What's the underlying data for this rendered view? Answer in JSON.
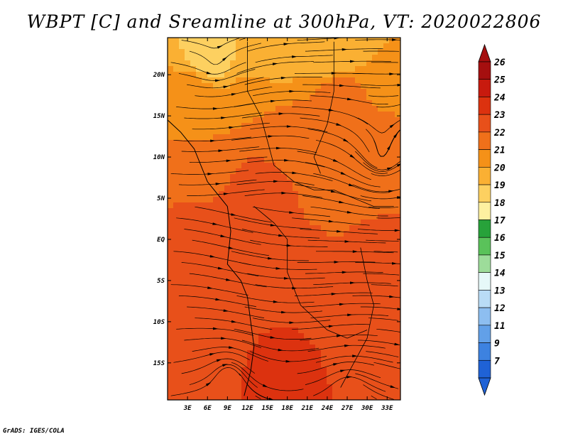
{
  "chart_data": {
    "type": "heatmap",
    "title": "WBPT [C] and Sreamline at 300hPa, VT: 2020022806",
    "footer": "GrADS: IGES/COLA",
    "x_ticks": [
      {
        "label": "3E",
        "value": 3
      },
      {
        "label": "6E",
        "value": 6
      },
      {
        "label": "9E",
        "value": 9
      },
      {
        "label": "12E",
        "value": 12
      },
      {
        "label": "15E",
        "value": 15
      },
      {
        "label": "18E",
        "value": 18
      },
      {
        "label": "21E",
        "value": 21
      },
      {
        "label": "24E",
        "value": 24
      },
      {
        "label": "27E",
        "value": 27
      },
      {
        "label": "30E",
        "value": 30
      },
      {
        "label": "33E",
        "value": 33
      }
    ],
    "y_ticks": [
      {
        "label": "20N",
        "value": 20
      },
      {
        "label": "15N",
        "value": 15
      },
      {
        "label": "10N",
        "value": 10
      },
      {
        "label": "5N",
        "value": 5
      },
      {
        "label": "EQ",
        "value": 0
      },
      {
        "label": "5S",
        "value": -5
      },
      {
        "label": "10S",
        "value": -10
      },
      {
        "label": "15S",
        "value": -15
      }
    ],
    "xlim": [
      0,
      35
    ],
    "ylim": [
      -19.5,
      24.5
    ],
    "colorbar": {
      "labels": [
        "26",
        "25",
        "24",
        "23",
        "22",
        "21",
        "20",
        "19",
        "18",
        "17",
        "16",
        "15",
        "14",
        "13",
        "12",
        "11",
        "9",
        "7"
      ],
      "colors": [
        "#a50f0f",
        "#c81a0e",
        "#dc320f",
        "#e8501a",
        "#f0701a",
        "#f59118",
        "#fab033",
        "#fdd060",
        "#fdf0a0",
        "#27a23a",
        "#5ac25a",
        "#9ddc9a",
        "#e6f8f8",
        "#b9dcf6",
        "#8dbef0",
        "#62a0e8",
        "#3d82e0",
        "#1f62d6"
      ],
      "top_color": "#a50f0f",
      "bottom_color": "#1f62d6"
    },
    "field_regions": [
      {
        "lon": 6,
        "lat": 22,
        "value": 19.5
      },
      {
        "lon": 15,
        "lat": 22,
        "value": 20.0
      },
      {
        "lon": 25,
        "lat": 23,
        "value": 20.0
      },
      {
        "lon": 32,
        "lat": 22,
        "value": 21.0
      },
      {
        "lon": 4,
        "lat": 18,
        "value": 21.5
      },
      {
        "lon": 14,
        "lat": 17,
        "value": 22.0
      },
      {
        "lon": 26,
        "lat": 17,
        "value": 22.5
      },
      {
        "lon": 7,
        "lat": 13,
        "value": 22.0
      },
      {
        "lon": 18,
        "lat": 12,
        "value": 22.5
      },
      {
        "lon": 30,
        "lat": 10,
        "value": 22.5
      },
      {
        "lon": 4,
        "lat": 6,
        "value": 23.0
      },
      {
        "lon": 14,
        "lat": 6,
        "value": 23.5
      },
      {
        "lon": 24,
        "lat": 4,
        "value": 22.8
      },
      {
        "lon": 32,
        "lat": 3,
        "value": 23.0
      },
      {
        "lon": 5,
        "lat": -3,
        "value": 23.6
      },
      {
        "lon": 20,
        "lat": -2,
        "value": 23.8
      },
      {
        "lon": 30,
        "lat": -4,
        "value": 23.5
      },
      {
        "lon": 6,
        "lat": -10,
        "value": 23.5
      },
      {
        "lon": 18,
        "lat": -10,
        "value": 24.0
      },
      {
        "lon": 30,
        "lat": -11,
        "value": 23.7
      },
      {
        "lon": 5,
        "lat": -16,
        "value": 23.8
      },
      {
        "lon": 17,
        "lat": -17,
        "value": 24.3
      },
      {
        "lon": 28,
        "lat": -17,
        "value": 24.0
      }
    ],
    "vortices": [
      {
        "lon": 7,
        "lat": 21.5,
        "r": 2.5,
        "dir": 1
      },
      {
        "lon": 32,
        "lat": 10,
        "r": 6,
        "dir": 1
      },
      {
        "lon": 9,
        "lat": -16.5,
        "r": 3,
        "dir": -1
      },
      {
        "lon": 27,
        "lat": -18.5,
        "r": 2.5,
        "dir": -1
      }
    ]
  }
}
